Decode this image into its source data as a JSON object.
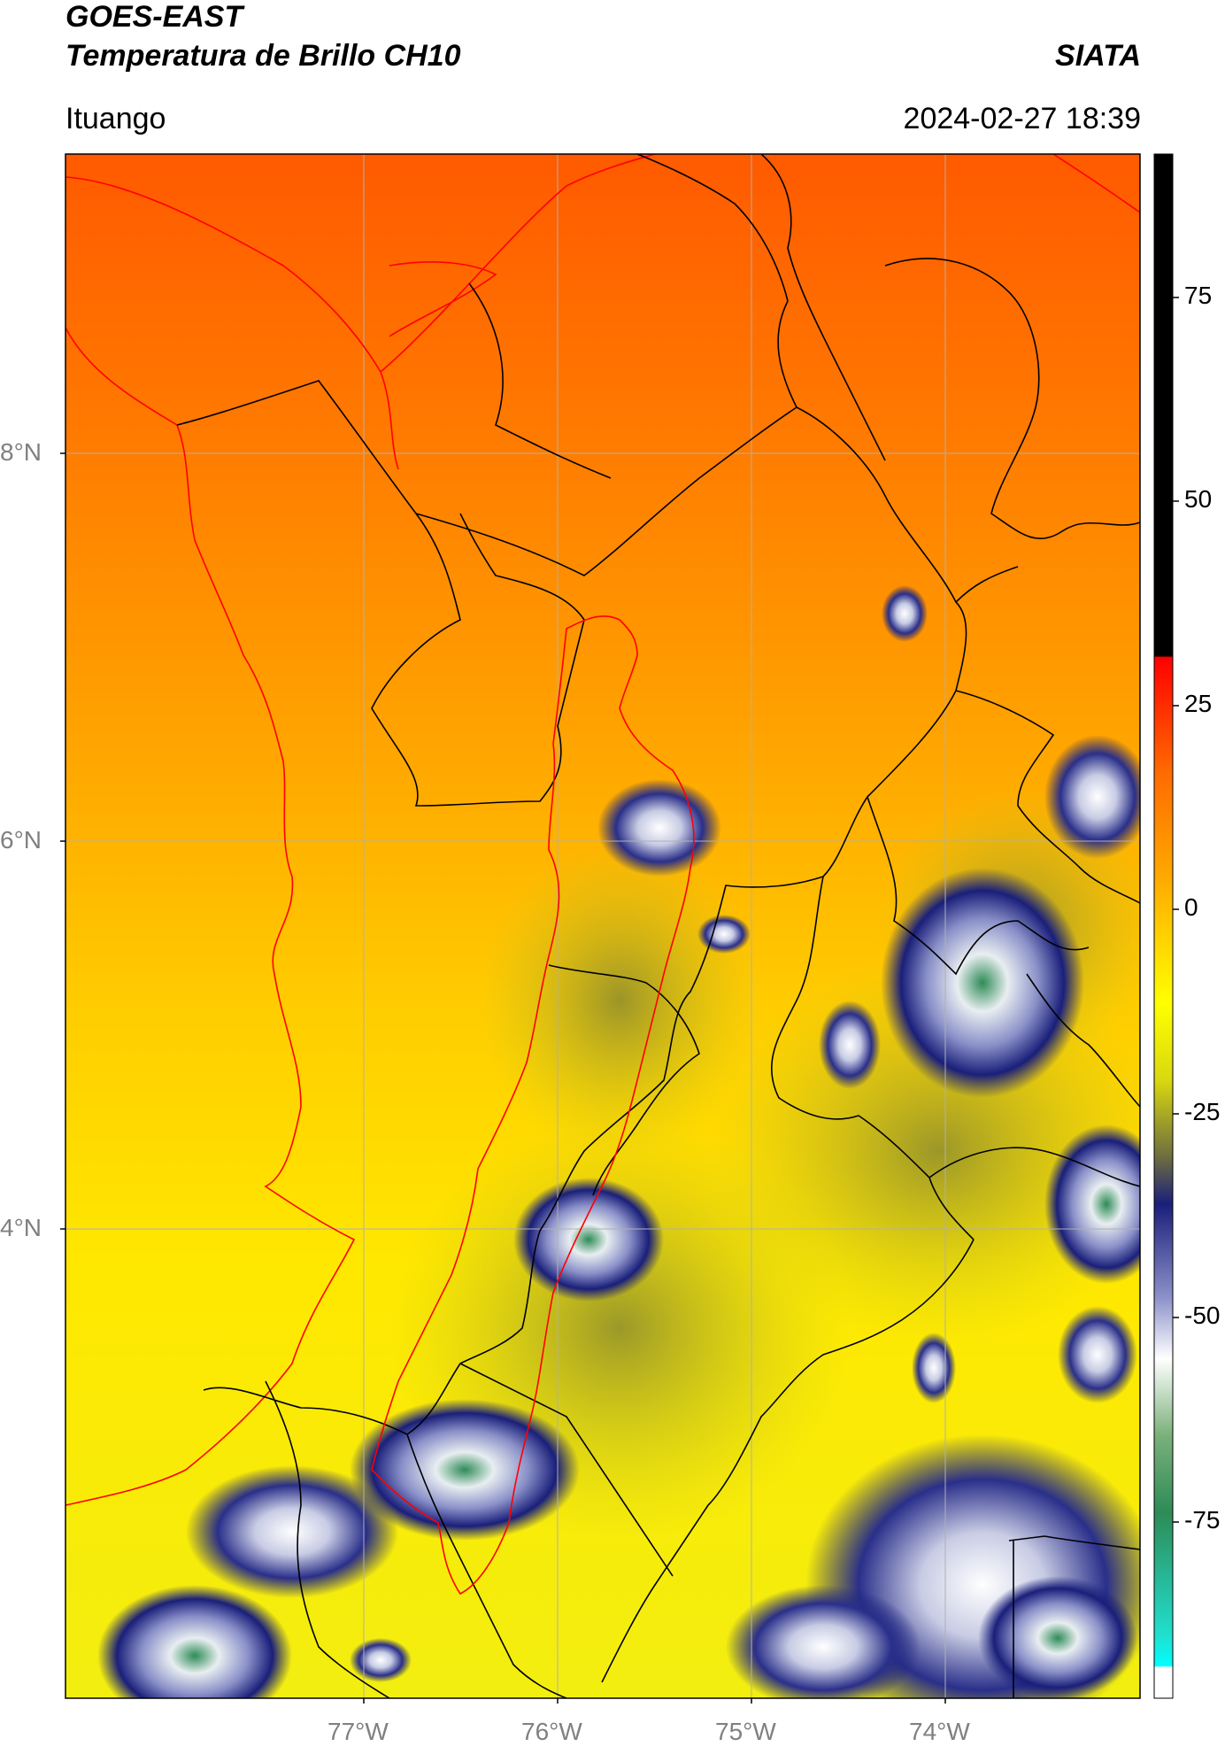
{
  "header": {
    "satellite": "GOES-EAST",
    "product": "Temperatura de Brillo CH10",
    "agency": "SIATA",
    "location": "Ituango",
    "datetime": "2024-02-27 18:39"
  },
  "axes": {
    "lat_labels": [
      "8°N",
      "6°N",
      "4°N"
    ],
    "lon_labels": [
      "77°W",
      "76°W",
      "75°W",
      "74°W"
    ]
  },
  "colorbar": {
    "tick_labels": [
      "75",
      "50",
      "25",
      "0",
      "-25",
      "-50",
      "-75"
    ],
    "tick_values": [
      75,
      50,
      25,
      0,
      -25,
      -50,
      -75
    ],
    "range": [
      -97,
      92
    ],
    "colors": {
      "warm_top": "#000000",
      "red": "#ff2a00",
      "orange": "#ff8c00",
      "yellow": "#ffff00",
      "olive": "#7a7a2a",
      "navy": "#1a1f7a",
      "white": "#ffffff",
      "green": "#2e8b57",
      "cyan": "#20e0d0"
    }
  },
  "map": {
    "colors": {
      "boundary": "#000000",
      "coast": "#ff0000",
      "basin": "#ff0000",
      "grid": "#b0b0b0"
    }
  }
}
